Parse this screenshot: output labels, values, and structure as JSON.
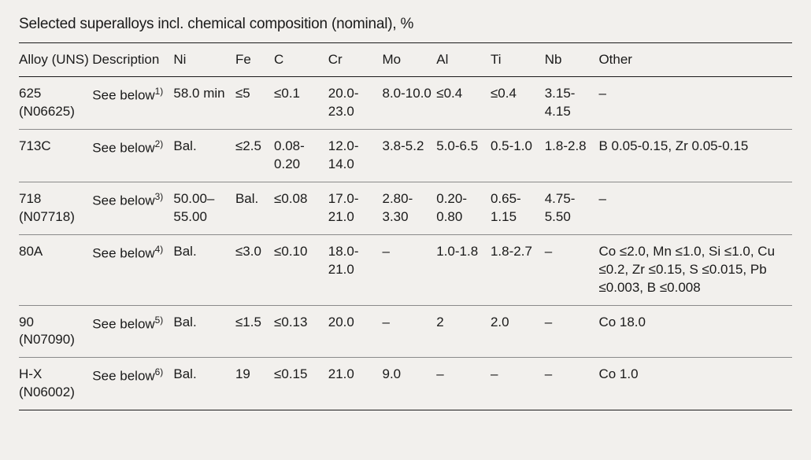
{
  "title": "Selected superalloys incl. chemical composition (nominal), %",
  "table": {
    "columns": [
      "Alloy (UNS)",
      "Description",
      "Ni",
      "Fe",
      "C",
      "Cr",
      "Mo",
      "Al",
      "Ti",
      "Nb",
      "Other"
    ],
    "col_widths_pct": [
      9.5,
      10.5,
      8,
      5,
      7,
      7,
      7,
      7,
      7,
      7,
      25
    ],
    "rows": [
      {
        "alloy": "625 (N06625)",
        "desc": "See below",
        "desc_sup": "1)",
        "cells": [
          "58.0 min",
          "≤5",
          "≤0.1",
          "20.0-23.0",
          "8.0-10.0",
          "≤0.4",
          "≤0.4",
          "3.15-4.15",
          "–"
        ]
      },
      {
        "alloy": "713C",
        "desc": "See below",
        "desc_sup": "2)",
        "cells": [
          "Bal.",
          "≤2.5",
          "0.08-0.20",
          "12.0-14.0",
          "3.8-5.2",
          "5.0-6.5",
          "0.5-1.0",
          "1.8-2.8",
          "B 0.05-0.15, Zr 0.05-0.15"
        ]
      },
      {
        "alloy": "718 (N07718)",
        "desc": "See below",
        "desc_sup": "3)",
        "cells": [
          "50.00–55.00",
          "Bal.",
          "≤0.08",
          "17.0-21.0",
          "2.80-3.30",
          "0.20-0.80",
          "0.65-1.15",
          "4.75-5.50",
          "–"
        ]
      },
      {
        "alloy": "80A",
        "desc": "See below",
        "desc_sup": "4)",
        "cells": [
          "Bal.",
          "≤3.0",
          "≤0.10",
          "18.0-21.0",
          "–",
          "1.0-1.8",
          "1.8-2.7",
          "–",
          "Co ≤2.0, Mn ≤1.0, Si ≤1.0, Cu ≤0.2, Zr ≤0.15, S ≤0.015, Pb ≤0.003, B ≤0.008"
        ]
      },
      {
        "alloy": "90 (N07090)",
        "desc": "See below",
        "desc_sup": "5)",
        "cells": [
          "Bal.",
          "≤1.5",
          "≤0.13",
          "20.0",
          "–",
          "2",
          "2.0",
          "–",
          "Co 18.0"
        ]
      },
      {
        "alloy": "H-X (N06002)",
        "desc": "See below",
        "desc_sup": "6)",
        "cells": [
          "Bal.",
          "19",
          "≤0.15",
          "21.0",
          "9.0",
          "–",
          "–",
          "–",
          "Co 1.0"
        ]
      }
    ]
  },
  "style": {
    "background_color": "#f2f0ed",
    "text_color": "#1a1a1a",
    "rule_strong": "#1a1a1a",
    "rule_light": "#8a8a8a",
    "title_fontsize": 19,
    "cell_fontsize": 17,
    "font_family": "Arial, Helvetica, sans-serif"
  }
}
